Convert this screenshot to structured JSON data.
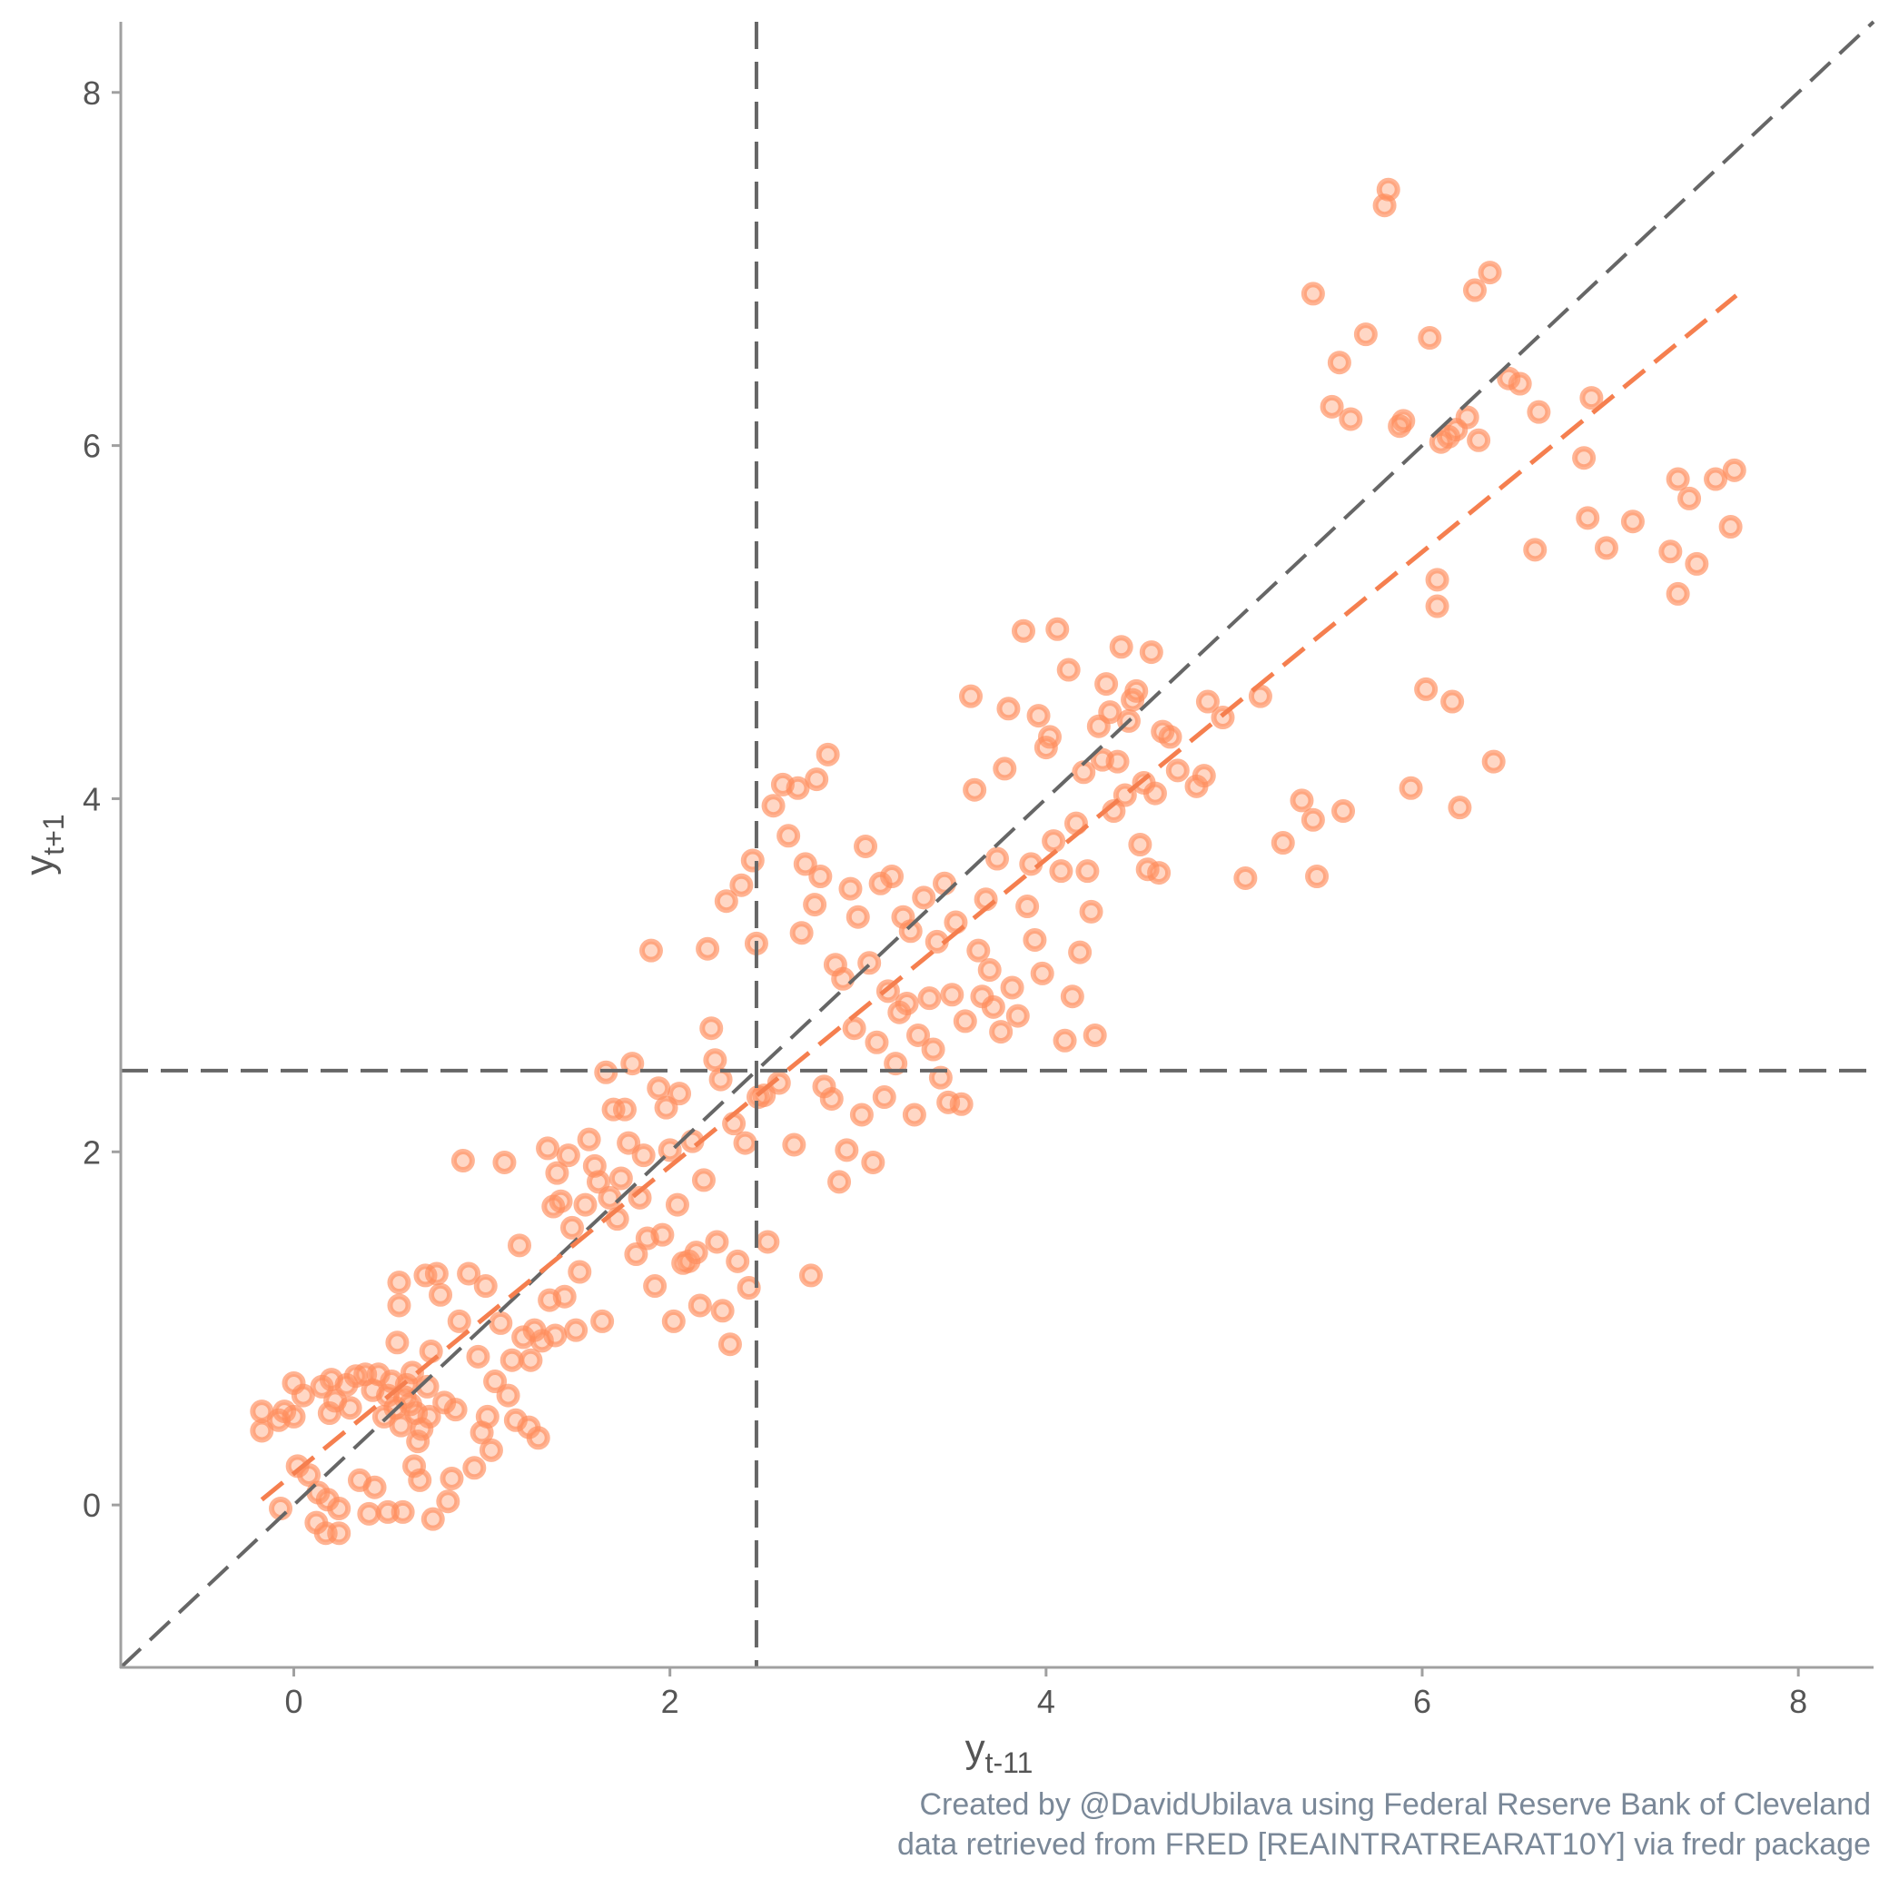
{
  "chart_data": {
    "type": "scatter",
    "xlabel": {
      "base": "y",
      "sub": "t-11"
    },
    "ylabel": {
      "base": "y",
      "sub": "t+1"
    },
    "xlim": [
      -0.92,
      8.4
    ],
    "ylim": [
      -0.92,
      8.4
    ],
    "xticks": [
      0,
      2,
      4,
      6,
      8
    ],
    "yticks": [
      0,
      2,
      4,
      6,
      8
    ],
    "grid": false,
    "reference_lines": {
      "vertical_x": 2.46,
      "horizontal_y": 2.46,
      "identity": {
        "slope": 1,
        "intercept": 0
      },
      "fit": {
        "x": [
          -0.17,
          7.67
        ],
        "y": [
          0.03,
          6.85
        ]
      }
    },
    "colors": {
      "points": "#ff8c5a",
      "fit_line": "#f57f4f",
      "reference": "#666666",
      "axis": "#a0a0a0"
    },
    "points": [
      [
        -0.17,
        0.53
      ],
      [
        -0.17,
        0.42
      ],
      [
        -0.08,
        0.48
      ],
      [
        -0.07,
        -0.02
      ],
      [
        -0.05,
        0.53
      ],
      [
        0.0,
        0.69
      ],
      [
        0.0,
        0.5
      ],
      [
        0.02,
        0.22
      ],
      [
        0.05,
        0.62
      ],
      [
        0.08,
        0.17
      ],
      [
        0.12,
        -0.1
      ],
      [
        0.13,
        0.07
      ],
      [
        0.15,
        0.67
      ],
      [
        0.17,
        -0.16
      ],
      [
        0.18,
        0.03
      ],
      [
        0.19,
        0.52
      ],
      [
        0.2,
        0.71
      ],
      [
        0.22,
        0.59
      ],
      [
        0.24,
        -0.16
      ],
      [
        0.24,
        -0.02
      ],
      [
        0.28,
        0.68
      ],
      [
        0.3,
        0.55
      ],
      [
        0.33,
        0.73
      ],
      [
        0.35,
        0.14
      ],
      [
        0.38,
        0.74
      ],
      [
        0.4,
        -0.05
      ],
      [
        0.42,
        0.65
      ],
      [
        0.43,
        0.1
      ],
      [
        0.45,
        0.74
      ],
      [
        0.48,
        0.5
      ],
      [
        0.5,
        0.62
      ],
      [
        0.5,
        -0.04
      ],
      [
        0.52,
        0.7
      ],
      [
        0.54,
        0.55
      ],
      [
        0.55,
        0.92
      ],
      [
        0.56,
        1.13
      ],
      [
        0.56,
        1.26
      ],
      [
        0.57,
        0.45
      ],
      [
        0.58,
        -0.04
      ],
      [
        0.59,
        0.61
      ],
      [
        0.6,
        0.68
      ],
      [
        0.62,
        0.57
      ],
      [
        0.63,
        0.75
      ],
      [
        0.64,
        0.22
      ],
      [
        0.65,
        0.52
      ],
      [
        0.66,
        0.36
      ],
      [
        0.67,
        0.14
      ],
      [
        0.68,
        0.43
      ],
      [
        0.7,
        1.3
      ],
      [
        0.71,
        0.67
      ],
      [
        0.72,
        0.5
      ],
      [
        0.73,
        0.87
      ],
      [
        0.74,
        -0.08
      ],
      [
        0.76,
        1.31
      ],
      [
        0.78,
        1.19
      ],
      [
        0.8,
        0.58
      ],
      [
        0.82,
        0.02
      ],
      [
        0.84,
        0.15
      ],
      [
        0.86,
        0.54
      ],
      [
        0.88,
        1.04
      ],
      [
        0.9,
        1.95
      ],
      [
        0.93,
        1.31
      ],
      [
        0.96,
        0.21
      ],
      [
        0.98,
        0.84
      ],
      [
        1.0,
        0.41
      ],
      [
        1.02,
        1.24
      ],
      [
        1.03,
        0.5
      ],
      [
        1.05,
        0.31
      ],
      [
        1.07,
        0.7
      ],
      [
        1.1,
        1.03
      ],
      [
        1.12,
        1.94
      ],
      [
        1.14,
        0.62
      ],
      [
        1.16,
        0.82
      ],
      [
        1.18,
        0.48
      ],
      [
        1.2,
        1.47
      ],
      [
        1.22,
        0.95
      ],
      [
        1.25,
        0.44
      ],
      [
        1.26,
        0.82
      ],
      [
        1.28,
        0.99
      ],
      [
        1.3,
        0.38
      ],
      [
        1.32,
        0.93
      ],
      [
        1.35,
        2.02
      ],
      [
        1.36,
        1.16
      ],
      [
        1.38,
        1.69
      ],
      [
        1.39,
        0.96
      ],
      [
        1.4,
        1.88
      ],
      [
        1.42,
        1.72
      ],
      [
        1.44,
        1.18
      ],
      [
        1.46,
        1.98
      ],
      [
        1.48,
        1.57
      ],
      [
        1.5,
        0.99
      ],
      [
        1.52,
        1.32
      ],
      [
        1.55,
        1.7
      ],
      [
        1.57,
        2.07
      ],
      [
        1.6,
        1.92
      ],
      [
        1.62,
        1.83
      ],
      [
        1.64,
        1.04
      ],
      [
        1.66,
        2.45
      ],
      [
        1.68,
        1.74
      ],
      [
        1.7,
        2.24
      ],
      [
        1.72,
        1.62
      ],
      [
        1.74,
        1.85
      ],
      [
        1.76,
        2.24
      ],
      [
        1.78,
        2.05
      ],
      [
        1.8,
        2.5
      ],
      [
        1.82,
        1.42
      ],
      [
        1.84,
        1.74
      ],
      [
        1.86,
        1.98
      ],
      [
        1.88,
        1.51
      ],
      [
        1.9,
        3.14
      ],
      [
        1.92,
        1.24
      ],
      [
        1.94,
        2.36
      ],
      [
        1.96,
        1.53
      ],
      [
        1.98,
        2.25
      ],
      [
        2.0,
        2.01
      ],
      [
        2.02,
        1.04
      ],
      [
        2.04,
        1.7
      ],
      [
        2.05,
        2.33
      ],
      [
        2.07,
        1.37
      ],
      [
        2.1,
        1.38
      ],
      [
        2.12,
        2.06
      ],
      [
        2.14,
        1.43
      ],
      [
        2.16,
        1.13
      ],
      [
        2.18,
        1.84
      ],
      [
        2.2,
        3.15
      ],
      [
        2.22,
        2.7
      ],
      [
        2.24,
        2.52
      ],
      [
        2.25,
        1.49
      ],
      [
        2.27,
        2.41
      ],
      [
        2.28,
        1.1
      ],
      [
        2.3,
        3.42
      ],
      [
        2.32,
        0.91
      ],
      [
        2.34,
        2.16
      ],
      [
        2.36,
        1.38
      ],
      [
        2.38,
        3.51
      ],
      [
        2.4,
        2.05
      ],
      [
        2.42,
        1.23
      ],
      [
        2.44,
        3.65
      ],
      [
        2.46,
        3.18
      ],
      [
        2.47,
        2.31
      ],
      [
        2.5,
        2.32
      ],
      [
        2.52,
        1.49
      ],
      [
        2.55,
        3.96
      ],
      [
        2.58,
        2.39
      ],
      [
        2.6,
        4.08
      ],
      [
        2.63,
        3.79
      ],
      [
        2.66,
        2.04
      ],
      [
        2.68,
        4.06
      ],
      [
        2.7,
        3.24
      ],
      [
        2.72,
        3.63
      ],
      [
        2.75,
        1.3
      ],
      [
        2.77,
        3.4
      ],
      [
        2.78,
        4.11
      ],
      [
        2.8,
        3.56
      ],
      [
        2.82,
        2.37
      ],
      [
        2.84,
        4.25
      ],
      [
        2.86,
        2.3
      ],
      [
        2.88,
        3.06
      ],
      [
        2.9,
        1.83
      ],
      [
        2.92,
        2.98
      ],
      [
        2.94,
        2.01
      ],
      [
        2.96,
        3.49
      ],
      [
        2.98,
        2.7
      ],
      [
        3.0,
        3.33
      ],
      [
        3.02,
        2.21
      ],
      [
        3.04,
        3.73
      ],
      [
        3.06,
        3.07
      ],
      [
        3.08,
        1.94
      ],
      [
        3.1,
        2.62
      ],
      [
        3.12,
        3.52
      ],
      [
        3.14,
        2.31
      ],
      [
        3.16,
        2.91
      ],
      [
        3.18,
        3.56
      ],
      [
        3.2,
        2.5
      ],
      [
        3.22,
        2.79
      ],
      [
        3.24,
        3.33
      ],
      [
        3.26,
        2.84
      ],
      [
        3.28,
        3.25
      ],
      [
        3.3,
        2.21
      ],
      [
        3.32,
        2.66
      ],
      [
        3.35,
        3.44
      ],
      [
        3.38,
        2.87
      ],
      [
        3.4,
        2.58
      ],
      [
        3.42,
        3.19
      ],
      [
        3.44,
        2.42
      ],
      [
        3.46,
        3.52
      ],
      [
        3.48,
        2.28
      ],
      [
        3.5,
        2.89
      ],
      [
        3.52,
        3.3
      ],
      [
        3.55,
        2.27
      ],
      [
        3.57,
        2.74
      ],
      [
        3.6,
        4.58
      ],
      [
        3.62,
        4.05
      ],
      [
        3.64,
        3.14
      ],
      [
        3.66,
        2.88
      ],
      [
        3.68,
        3.43
      ],
      [
        3.7,
        3.03
      ],
      [
        3.72,
        2.82
      ],
      [
        3.74,
        3.66
      ],
      [
        3.76,
        2.68
      ],
      [
        3.78,
        4.17
      ],
      [
        3.8,
        4.51
      ],
      [
        3.82,
        2.93
      ],
      [
        3.85,
        2.77
      ],
      [
        3.88,
        4.95
      ],
      [
        3.9,
        3.39
      ],
      [
        3.92,
        3.63
      ],
      [
        3.94,
        3.2
      ],
      [
        3.96,
        4.47
      ],
      [
        3.98,
        3.01
      ],
      [
        4.0,
        4.29
      ],
      [
        4.02,
        4.35
      ],
      [
        4.04,
        3.76
      ],
      [
        4.06,
        4.96
      ],
      [
        4.08,
        3.59
      ],
      [
        4.1,
        2.63
      ],
      [
        4.12,
        4.73
      ],
      [
        4.14,
        2.88
      ],
      [
        4.16,
        3.86
      ],
      [
        4.18,
        3.13
      ],
      [
        4.2,
        4.15
      ],
      [
        4.22,
        3.59
      ],
      [
        4.24,
        3.36
      ],
      [
        4.26,
        2.66
      ],
      [
        4.28,
        4.41
      ],
      [
        4.3,
        4.22
      ],
      [
        4.32,
        4.65
      ],
      [
        4.34,
        4.49
      ],
      [
        4.36,
        3.93
      ],
      [
        4.38,
        4.21
      ],
      [
        4.4,
        4.86
      ],
      [
        4.42,
        4.02
      ],
      [
        4.44,
        4.44
      ],
      [
        4.46,
        4.56
      ],
      [
        4.48,
        4.61
      ],
      [
        4.5,
        3.74
      ],
      [
        4.52,
        4.09
      ],
      [
        4.54,
        3.6
      ],
      [
        4.56,
        4.83
      ],
      [
        4.58,
        4.03
      ],
      [
        4.6,
        3.58
      ],
      [
        4.62,
        4.38
      ],
      [
        4.66,
        4.35
      ],
      [
        4.7,
        4.16
      ],
      [
        4.8,
        4.07
      ],
      [
        4.84,
        4.13
      ],
      [
        4.86,
        4.55
      ],
      [
        4.94,
        4.46
      ],
      [
        5.06,
        3.55
      ],
      [
        5.14,
        4.58
      ],
      [
        5.26,
        3.75
      ],
      [
        5.36,
        3.99
      ],
      [
        5.42,
        3.88
      ],
      [
        5.44,
        3.56
      ],
      [
        5.42,
        6.86
      ],
      [
        5.52,
        6.22
      ],
      [
        5.56,
        6.47
      ],
      [
        5.58,
        3.93
      ],
      [
        5.62,
        6.15
      ],
      [
        5.7,
        6.63
      ],
      [
        5.8,
        7.36
      ],
      [
        5.82,
        7.45
      ],
      [
        5.88,
        6.11
      ],
      [
        5.9,
        6.14
      ],
      [
        5.94,
        4.06
      ],
      [
        6.02,
        4.62
      ],
      [
        6.04,
        6.61
      ],
      [
        6.08,
        5.24
      ],
      [
        6.08,
        5.09
      ],
      [
        6.1,
        6.02
      ],
      [
        6.14,
        6.05
      ],
      [
        6.16,
        4.55
      ],
      [
        6.18,
        6.09
      ],
      [
        6.2,
        3.95
      ],
      [
        6.24,
        6.16
      ],
      [
        6.28,
        6.88
      ],
      [
        6.3,
        6.03
      ],
      [
        6.36,
        6.98
      ],
      [
        6.38,
        4.21
      ],
      [
        6.46,
        6.38
      ],
      [
        6.52,
        6.35
      ],
      [
        6.6,
        5.41
      ],
      [
        6.62,
        6.19
      ],
      [
        6.86,
        5.93
      ],
      [
        6.88,
        5.59
      ],
      [
        6.9,
        6.27
      ],
      [
        6.98,
        5.42
      ],
      [
        7.12,
        5.57
      ],
      [
        7.32,
        5.4
      ],
      [
        7.36,
        5.81
      ],
      [
        7.36,
        5.16
      ],
      [
        7.42,
        5.7
      ],
      [
        7.46,
        5.33
      ],
      [
        7.56,
        5.81
      ],
      [
        7.64,
        5.54
      ],
      [
        7.66,
        5.86
      ]
    ],
    "caption": [
      "Created by @DavidUbilava using Federal Reserve Bank of Cleveland",
      "data retrieved from FRED [REAINTRATREARAT10Y] via fredr package"
    ]
  }
}
